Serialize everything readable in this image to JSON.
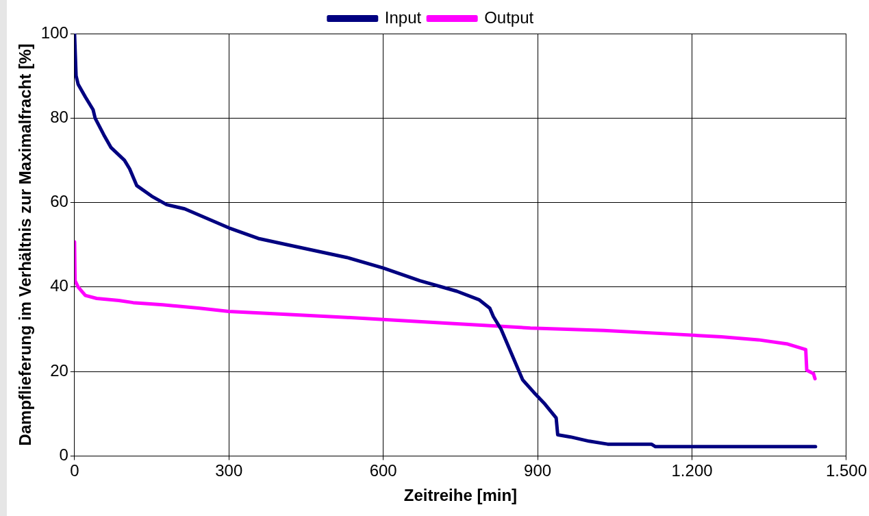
{
  "chart_data": {
    "type": "line",
    "xlabel": "Zeitreihe [min]",
    "ylabel": "Dampflieferung im Verhältnis zur Maximalfracht [%]",
    "xlim": [
      0,
      1500
    ],
    "xticks": [
      0,
      300,
      600,
      900,
      {
        "value": 1200,
        "label": "1.200"
      },
      {
        "value": 1500,
        "label": "1.500"
      }
    ],
    "ylim": [
      0,
      100
    ],
    "yticks": [
      0,
      20,
      40,
      60,
      80,
      100
    ],
    "grid": true,
    "legend": "top",
    "series": [
      {
        "name": "Input",
        "color": "#000080",
        "x": [
          0,
          3,
          7,
          21,
          36,
          40,
          57,
          71,
          97,
          107,
          121,
          150,
          179,
          214,
          300,
          357,
          414,
          529,
          600,
          671,
          743,
          786,
          807,
          814,
          829,
          850,
          871,
          893,
          914,
          936,
          939,
          964,
          1000,
          1036,
          1121,
          1129,
          1440
        ],
        "values": [
          100,
          90,
          88,
          85,
          82,
          80,
          76,
          73,
          70,
          68,
          64,
          61.5,
          59.5,
          58.5,
          54,
          51.5,
          50,
          47,
          44.5,
          41.5,
          39,
          37,
          35,
          33,
          30,
          24,
          18,
          15,
          12.3,
          9,
          5,
          4.5,
          3.5,
          2.8,
          2.8,
          2.2,
          2.2
        ]
      },
      {
        "name": "Output",
        "color": "#ff00ff",
        "x": [
          0,
          1,
          7,
          21,
          43,
          86,
          114,
          171,
          243,
          300,
          386,
          529,
          600,
          743,
          886,
          1029,
          1171,
          1257,
          1329,
          1386,
          1421,
          1423,
          1436,
          1439
        ],
        "values": [
          50.7,
          41.5,
          40,
          38,
          37.3,
          36.8,
          36.3,
          35.8,
          35,
          34.2,
          33.7,
          32.8,
          32.3,
          31.3,
          30.3,
          29.7,
          28.8,
          28.2,
          27.5,
          26.5,
          25.2,
          20.3,
          19.5,
          18.3
        ]
      }
    ]
  }
}
